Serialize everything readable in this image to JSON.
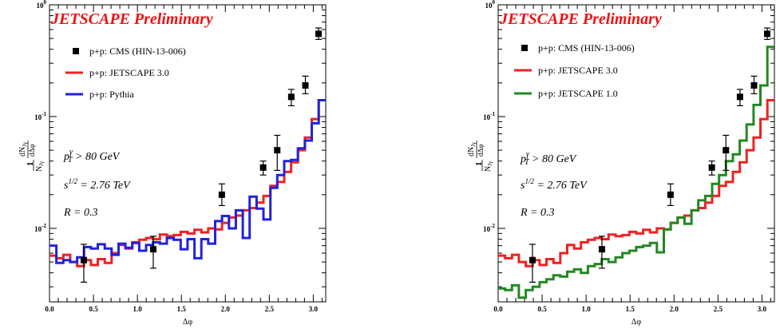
{
  "figure": {
    "panels": [
      {
        "prelim_label": "JETSCAPE Preliminary",
        "legend": [
          {
            "label": "p+p: CMS (HIN-13-006)",
            "kind": "marker",
            "color": "#000000"
          },
          {
            "label": "p+p: JETSCAPE 3.0",
            "kind": "line",
            "color": "#ee2222"
          },
          {
            "label": "p+p: Pythia",
            "kind": "line",
            "color": "#2222dd"
          }
        ],
        "annotations": {
          "pt_base": "p",
          "pt_sup": "γ",
          "pt_sub": "T",
          "pt_cut": " > 80 GeV",
          "sqrt_base": "s",
          "sqrt_sup": "1/2",
          "sqrt_val": " = 2.76 TeV",
          "radius": "R = 0.3"
        }
      },
      {
        "prelim_label": "JETSCAPE Preliminary",
        "legend": [
          {
            "label": "p+p: CMS (HIN-13-006)",
            "kind": "marker",
            "color": "#000000"
          },
          {
            "label": "p+p: JETSCAPE 3.0",
            "kind": "line",
            "color": "#ee2222"
          },
          {
            "label": "p+p: JETSCAPE 1.0",
            "kind": "line",
            "color": "#228822"
          }
        ],
        "annotations": {
          "pt_base": "p",
          "pt_sup": "γ",
          "pt_sub": "T",
          "pt_cut": " > 80 GeV",
          "sqrt_base": "s",
          "sqrt_sup": "1/2",
          "sqrt_val": " = 2.76 TeV",
          "radius": "R = 0.3"
        }
      }
    ]
  },
  "chart_data": [
    {
      "type": "line",
      "xlabel": "Δφ",
      "ylabel": "1/N_Jγ dN_Jγ/dΔφ",
      "xlim": [
        0.0,
        3.14159
      ],
      "ylim": [
        0.0022,
        1.0
      ],
      "yscale": "log",
      "xticks": [
        "0.0",
        "0.5",
        "1.0",
        "1.5",
        "2.0",
        "2.5",
        "3.0"
      ],
      "yticks": [
        {
          "base": "10",
          "exp": "-2",
          "value": 0.01
        },
        {
          "base": "10",
          "exp": "-1",
          "value": 0.1
        },
        {
          "base": "10",
          "exp": "0",
          "value": 1.0
        }
      ],
      "legend_position": "top-left",
      "cms_points": [
        {
          "x": 0.39,
          "y": 0.0052,
          "ylo": 0.0033,
          "yhi": 0.0072
        },
        {
          "x": 1.18,
          "y": 0.0065,
          "ylo": 0.0044,
          "yhi": 0.0085
        },
        {
          "x": 1.96,
          "y": 0.02,
          "ylo": 0.016,
          "yhi": 0.025
        },
        {
          "x": 2.43,
          "y": 0.035,
          "ylo": 0.03,
          "yhi": 0.04
        },
        {
          "x": 2.59,
          "y": 0.05,
          "ylo": 0.033,
          "yhi": 0.068
        },
        {
          "x": 2.75,
          "y": 0.15,
          "ylo": 0.125,
          "yhi": 0.175
        },
        {
          "x": 2.91,
          "y": 0.19,
          "ylo": 0.16,
          "yhi": 0.23
        },
        {
          "x": 3.06,
          "y": 0.55,
          "ylo": 0.49,
          "yhi": 0.62
        }
      ],
      "series": [
        {
          "name": "p+p: JETSCAPE 3.0",
          "color": "#ee2222",
          "bin_width": 0.0785,
          "values": [
            0.0057,
            0.0054,
            0.0058,
            0.005,
            0.0046,
            0.0052,
            0.0047,
            0.0053,
            0.0049,
            0.006,
            0.0071,
            0.0066,
            0.0075,
            0.0079,
            0.0082,
            0.008,
            0.0088,
            0.0085,
            0.0087,
            0.0093,
            0.009,
            0.0097,
            0.0092,
            0.01,
            0.0098,
            0.0112,
            0.0125,
            0.013,
            0.0145,
            0.0152,
            0.017,
            0.0195,
            0.024,
            0.026,
            0.032,
            0.039,
            0.05,
            0.065,
            0.095,
            0.14
          ]
        },
        {
          "name": "p+p: Pythia",
          "color": "#2222dd",
          "bin_width": 0.0785,
          "values": [
            0.007,
            0.0049,
            0.0052,
            0.005,
            0.0055,
            0.0068,
            0.0066,
            0.0072,
            0.0066,
            0.0058,
            0.0073,
            0.0067,
            0.0074,
            0.0063,
            0.0071,
            0.0075,
            0.0073,
            0.0082,
            0.0079,
            0.0065,
            0.008,
            0.0054,
            0.008,
            0.0073,
            0.0116,
            0.0129,
            0.01,
            0.0145,
            0.0082,
            0.0192,
            0.015,
            0.012,
            0.023,
            0.03,
            0.04,
            0.041,
            0.052,
            0.061,
            0.087,
            0.14
          ]
        }
      ]
    },
    {
      "type": "line",
      "xlabel": "Δφ",
      "ylabel": "1/N_Jγ dN_Jγ/dΔφ",
      "xlim": [
        0.0,
        3.14159
      ],
      "ylim": [
        0.0022,
        1.0
      ],
      "yscale": "log",
      "xticks": [
        "0.0",
        "0.5",
        "1.0",
        "1.5",
        "2.0",
        "2.5",
        "3.0"
      ],
      "yticks": [
        {
          "base": "10",
          "exp": "-2",
          "value": 0.01
        },
        {
          "base": "10",
          "exp": "-1",
          "value": 0.1
        },
        {
          "base": "10",
          "exp": "0",
          "value": 1.0
        }
      ],
      "legend_position": "top-left",
      "cms_points": [
        {
          "x": 0.39,
          "y": 0.0052,
          "ylo": 0.0033,
          "yhi": 0.0072
        },
        {
          "x": 1.18,
          "y": 0.0065,
          "ylo": 0.0044,
          "yhi": 0.0085
        },
        {
          "x": 1.96,
          "y": 0.02,
          "ylo": 0.016,
          "yhi": 0.025
        },
        {
          "x": 2.43,
          "y": 0.035,
          "ylo": 0.03,
          "yhi": 0.04
        },
        {
          "x": 2.59,
          "y": 0.05,
          "ylo": 0.033,
          "yhi": 0.068
        },
        {
          "x": 2.75,
          "y": 0.15,
          "ylo": 0.125,
          "yhi": 0.175
        },
        {
          "x": 2.91,
          "y": 0.19,
          "ylo": 0.16,
          "yhi": 0.23
        },
        {
          "x": 3.06,
          "y": 0.55,
          "ylo": 0.49,
          "yhi": 0.62
        }
      ],
      "series": [
        {
          "name": "p+p: JETSCAPE 3.0",
          "color": "#ee2222",
          "bin_width": 0.0785,
          "values": [
            0.0057,
            0.0054,
            0.0058,
            0.005,
            0.0046,
            0.0052,
            0.0047,
            0.0053,
            0.0049,
            0.006,
            0.0071,
            0.0066,
            0.0075,
            0.0079,
            0.0082,
            0.008,
            0.0088,
            0.0085,
            0.0087,
            0.0093,
            0.009,
            0.0097,
            0.0092,
            0.01,
            0.0098,
            0.0112,
            0.0125,
            0.013,
            0.0145,
            0.0152,
            0.017,
            0.0195,
            0.024,
            0.026,
            0.032,
            0.039,
            0.05,
            0.065,
            0.095,
            0.14
          ]
        },
        {
          "name": "p+p: JETSCAPE 1.0",
          "color": "#228822",
          "bin_width": 0.0785,
          "values": [
            0.0029,
            0.0028,
            0.0031,
            0.0024,
            0.0028,
            0.003,
            0.0033,
            0.0035,
            0.0038,
            0.0037,
            0.0041,
            0.0043,
            0.004,
            0.0046,
            0.0048,
            0.0053,
            0.005,
            0.0055,
            0.006,
            0.0063,
            0.0068,
            0.007,
            0.0074,
            0.0061,
            0.0098,
            0.0112,
            0.0125,
            0.011,
            0.0145,
            0.0178,
            0.0195,
            0.025,
            0.03,
            0.04,
            0.046,
            0.061,
            0.085,
            0.127,
            0.19,
            0.42
          ]
        }
      ]
    }
  ]
}
